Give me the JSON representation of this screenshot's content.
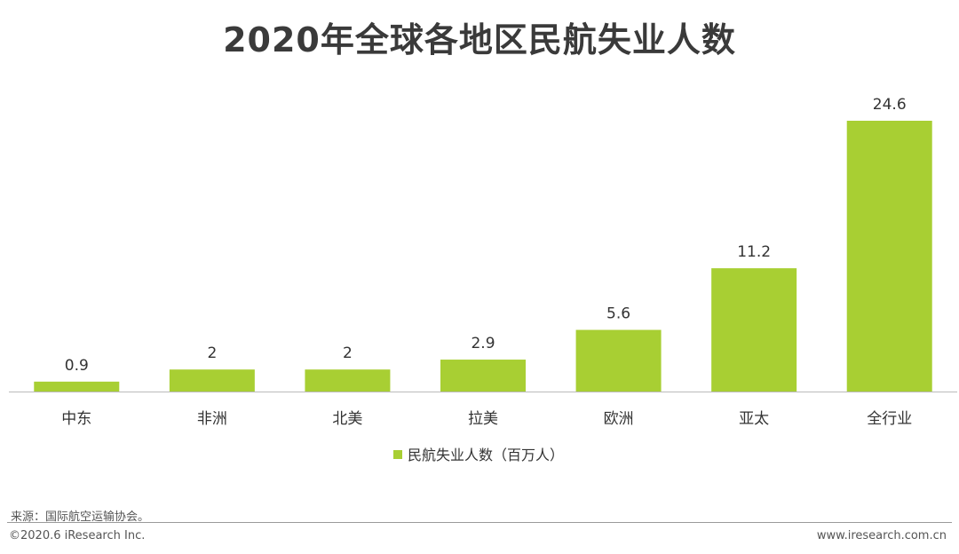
{
  "chart_data": {
    "type": "bar",
    "title": "2020年全球各地区民航失业人数",
    "categories": [
      "中东",
      "非洲",
      "北美",
      "拉美",
      "欧洲",
      "亚太",
      "全行业"
    ],
    "series": [
      {
        "name": "民航失业人数（百万人）",
        "values": [
          0.9,
          2,
          2,
          2.9,
          5.6,
          11.2,
          24.6
        ],
        "value_labels": [
          "0.9",
          "2",
          "2",
          "2.9",
          "5.6",
          "11.2",
          "24.6"
        ],
        "color": "#a8cf33"
      }
    ],
    "xlabel": "",
    "ylabel": "",
    "ylim": [
      0,
      24.6
    ],
    "grid": false,
    "legend": "bottom-center"
  },
  "footer": {
    "source": "来源：国际航空运输协会。",
    "copyright": "©2020.6 iResearch Inc.",
    "website": "www.iresearch.com.cn"
  }
}
